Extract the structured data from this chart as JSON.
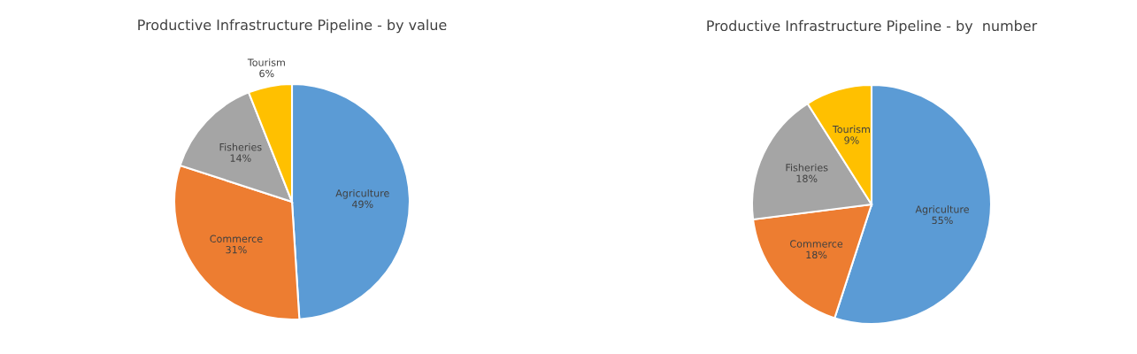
{
  "chart_data": [
    {
      "type": "pie",
      "title": "Productive Infrastructure Pipeline - by value",
      "categories": [
        "Agriculture",
        "Commerce",
        "Fisheries",
        "Tourism"
      ],
      "values": [
        49,
        31,
        14,
        6
      ],
      "value_labels": [
        "49%",
        "31%",
        "14%",
        "6%"
      ],
      "colors": [
        "#5b9bd5",
        "#ed7d31",
        "#a5a5a5",
        "#ffc000"
      ]
    },
    {
      "type": "pie",
      "title": "Productive Infrastructure Pipeline - by  number",
      "categories": [
        "Agriculture",
        "Commerce",
        "Fisheries",
        "Tourism"
      ],
      "values": [
        55,
        18,
        18,
        9
      ],
      "value_labels": [
        "55%",
        "18%",
        "18%",
        "9%"
      ],
      "colors": [
        "#5b9bd5",
        "#ed7d31",
        "#a5a5a5",
        "#ffc000"
      ]
    }
  ]
}
